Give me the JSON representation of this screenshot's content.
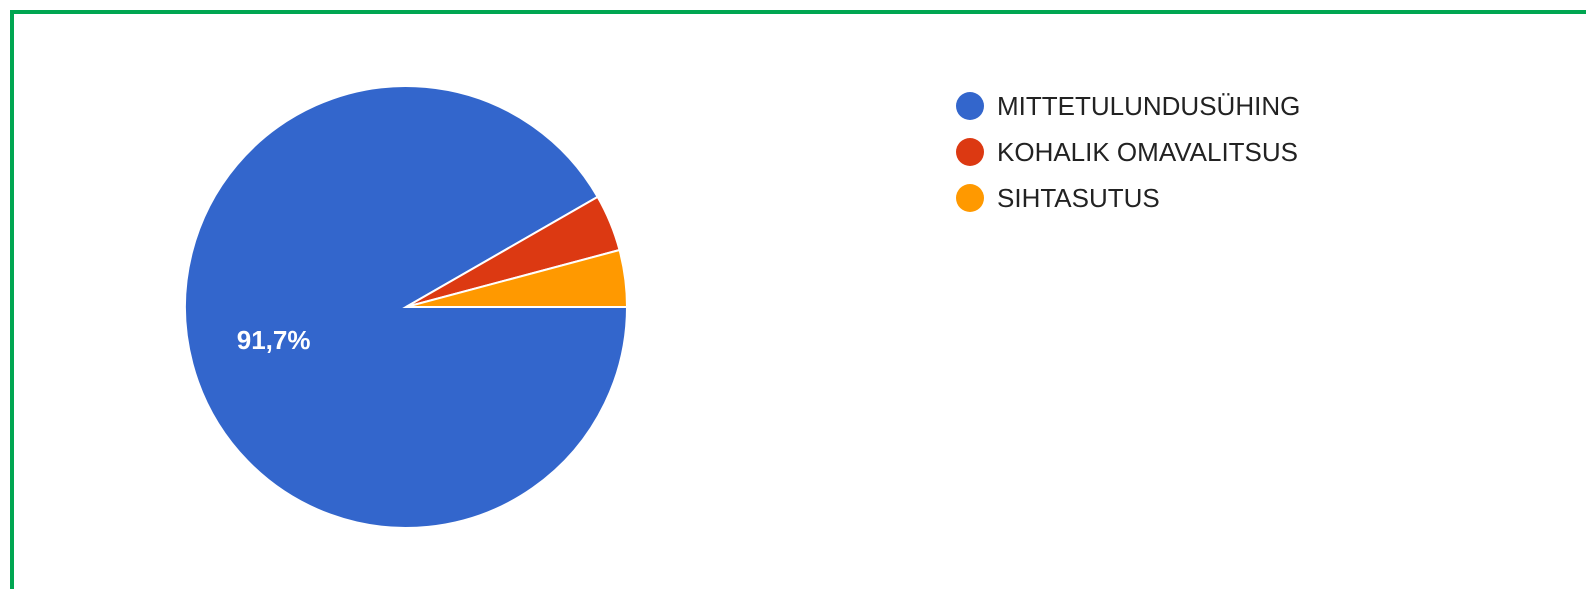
{
  "chart_data": {
    "type": "pie",
    "categories": [
      "MITTETULUNDUSÜHING",
      "KOHALIK OMAVALITSUS",
      "SIHTASUTUS"
    ],
    "values": [
      91.7,
      4.15,
      4.15
    ],
    "colors": [
      "#3366cc",
      "#dc3912",
      "#ff9900"
    ],
    "data_labels": [
      "91,7%",
      "",
      ""
    ],
    "legend": "right",
    "start_angle_deg": 0,
    "direction": "clockwise"
  },
  "frame": {
    "border_color": "#00a651"
  }
}
